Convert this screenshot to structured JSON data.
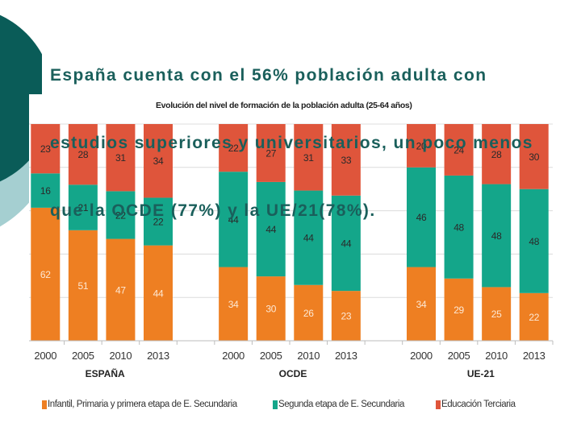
{
  "slide": {
    "title_lines": [
      "España cuenta con el 56% población adulta con",
      "estudios superiores y universitarios, un poco menos",
      "que la OCDE (77%) y la UE/21(78%)."
    ]
  },
  "theme": {
    "title_color": "#1a5f5b",
    "decor_dark": "#0a5c58",
    "decor_light": "#a5cfd1"
  },
  "chart_data": {
    "type": "bar",
    "stacked": true,
    "title": "Evolución del nivel de formación de la población adulta (25-64 años)",
    "groups": [
      "ESPAÑA",
      "OCDE",
      "UE-21"
    ],
    "categories": [
      "2000",
      "2005",
      "2010",
      "2013"
    ],
    "series": [
      {
        "name": "Infantil, Primaria y primera etapa de E. Secundaria",
        "color": "#ee7f22",
        "values": [
          [
            62,
            51,
            47,
            44
          ],
          [
            34,
            30,
            26,
            23
          ],
          [
            34,
            29,
            25,
            22
          ]
        ]
      },
      {
        "name": "Segunda etapa de E. Secundaria",
        "color": "#14a68a",
        "values": [
          [
            16,
            21,
            22,
            22
          ],
          [
            44,
            44,
            44,
            44
          ],
          [
            46,
            48,
            48,
            48
          ]
        ]
      },
      {
        "name": "Educación Terciaria",
        "color": "#df553b",
        "values": [
          [
            23,
            28,
            31,
            34
          ],
          [
            22,
            27,
            31,
            33
          ],
          [
            20,
            24,
            28,
            30
          ]
        ]
      }
    ],
    "xlabel": "",
    "ylabel": "",
    "ylim": [
      0,
      100
    ],
    "grid": true,
    "legend": "bottom"
  }
}
